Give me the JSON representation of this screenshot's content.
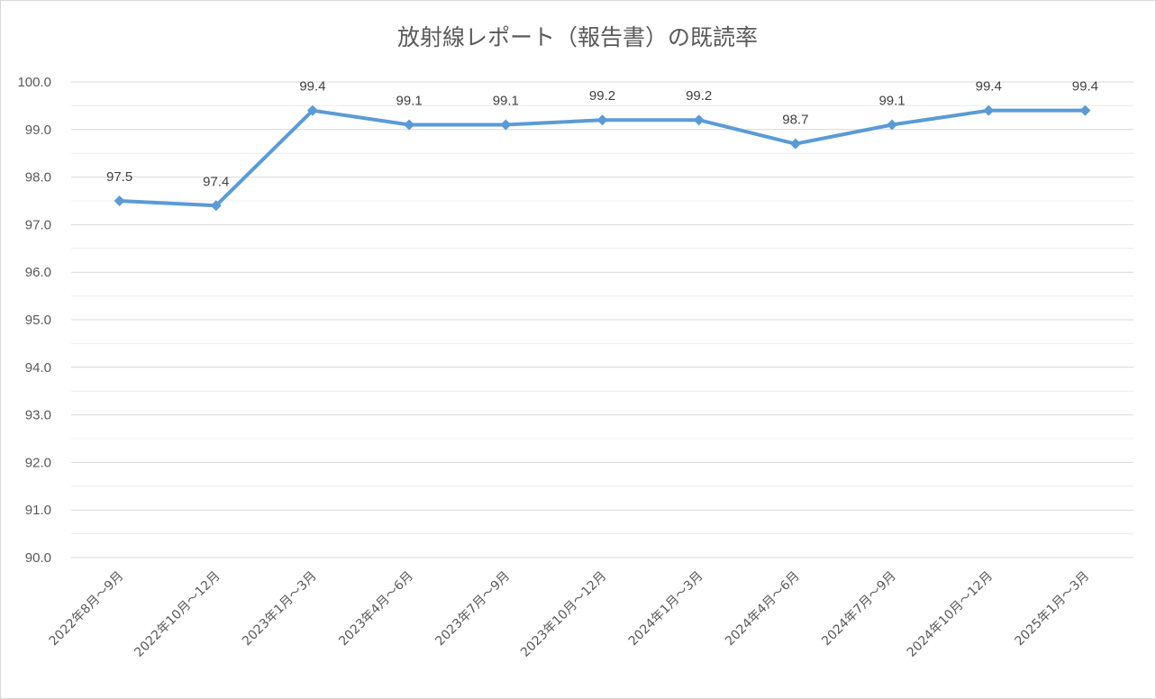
{
  "chart_data": {
    "type": "line",
    "title": "放射線レポート（報告書）の既読率",
    "xlabel": "",
    "ylabel": "",
    "ylim": [
      90.0,
      100.0
    ],
    "y_ticks": [
      "90.0",
      "91.0",
      "92.0",
      "93.0",
      "94.0",
      "95.0",
      "96.0",
      "97.0",
      "98.0",
      "99.0",
      "100.0"
    ],
    "grid": true,
    "legend": "none",
    "categories": [
      "2022年8月～9月",
      "2022年10月～12月",
      "2023年1月～3月",
      "2023年4月～6月",
      "2023年7月～9月",
      "2023年10月～12月",
      "2024年1月～3月",
      "2024年4月～6月",
      "2024年7月～9月",
      "2024年10月～12月",
      "2025年1月～3月"
    ],
    "series": [
      {
        "values": [
          97.5,
          97.4,
          99.4,
          99.1,
          99.1,
          99.2,
          99.2,
          98.7,
          99.1,
          99.4,
          99.4
        ],
        "labels": [
          "97.5",
          "97.4",
          "99.4",
          "99.1",
          "99.1",
          "99.2",
          "99.2",
          "98.7",
          "99.1",
          "99.4",
          "99.4"
        ],
        "color": "#5b9bd5",
        "marker": "diamond"
      }
    ]
  }
}
